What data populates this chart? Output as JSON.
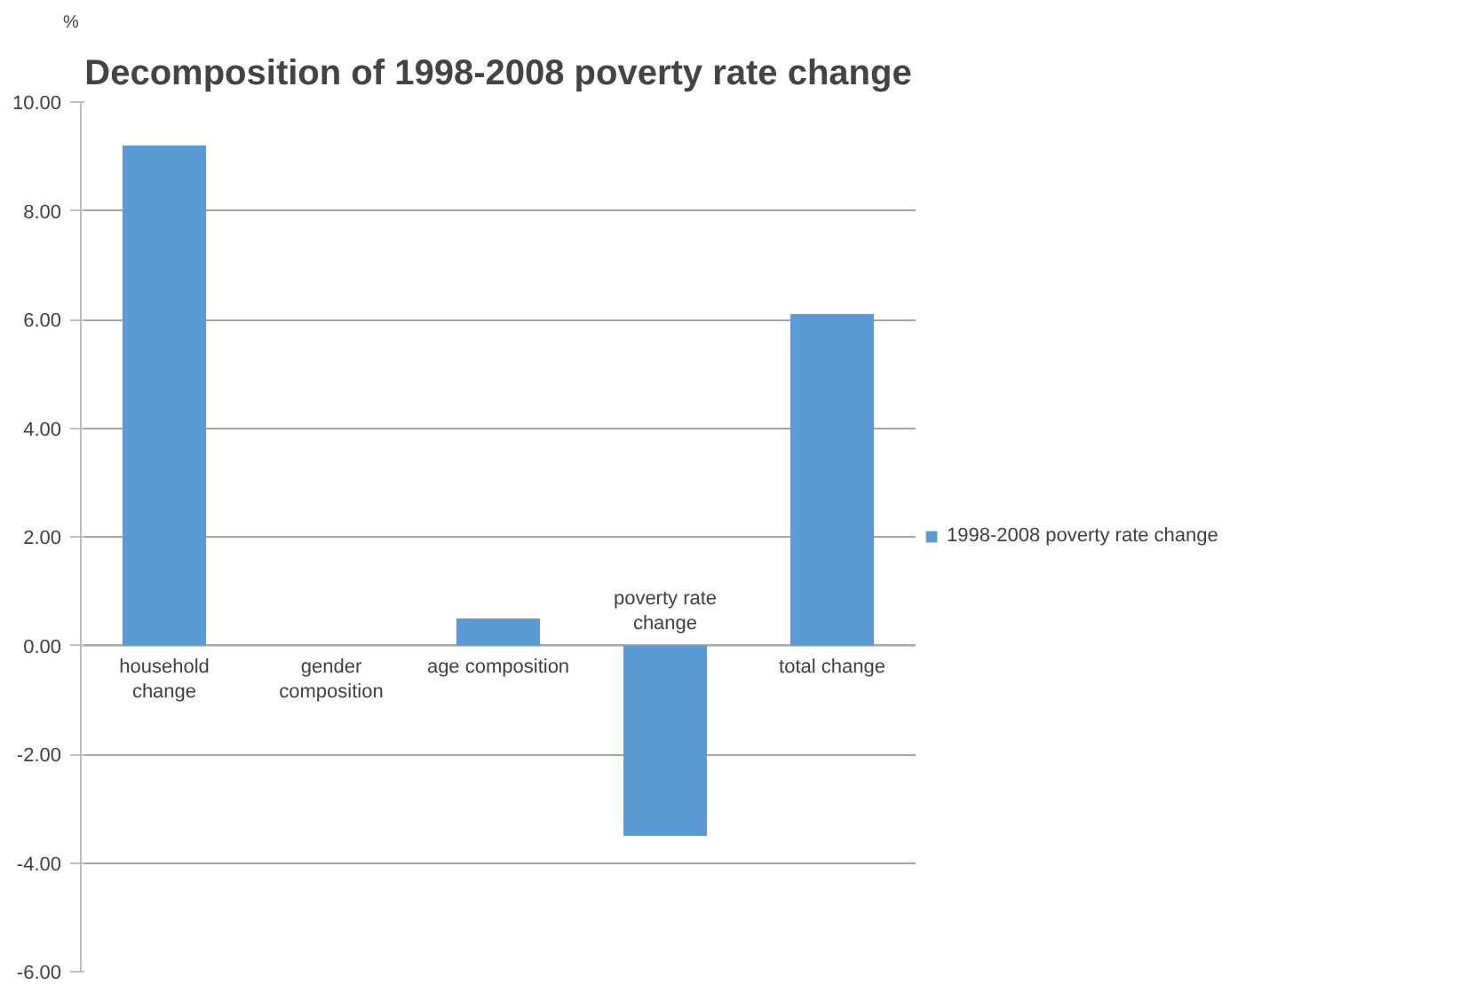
{
  "chart_data": {
    "type": "bar",
    "title": "Decomposition of 1998-2008 poverty rate change",
    "ylabel": "%",
    "categories": [
      "household\nchange",
      "gender\ncomposition",
      "age composition",
      "poverty rate\nchange",
      "total change"
    ],
    "series": [
      {
        "name": "1998-2008 poverty rate change",
        "color": "#5b9bd5",
        "values": [
          9.2,
          0,
          0.5,
          -3.5,
          6.1
        ]
      }
    ],
    "ylim": [
      -6,
      10
    ],
    "yticks": [
      {
        "value": -6,
        "label": "-6.00"
      },
      {
        "value": -4,
        "label": "-4.00"
      },
      {
        "value": -2,
        "label": "-2.00"
      },
      {
        "value": 0,
        "label": "0.00"
      },
      {
        "value": 2,
        "label": "2.00"
      },
      {
        "value": 4,
        "label": "4.00"
      },
      {
        "value": 6,
        "label": "6.00"
      },
      {
        "value": 8,
        "label": "8.00"
      },
      {
        "value": 10,
        "label": "10.00"
      }
    ],
    "grid": "y",
    "legend": "right"
  }
}
